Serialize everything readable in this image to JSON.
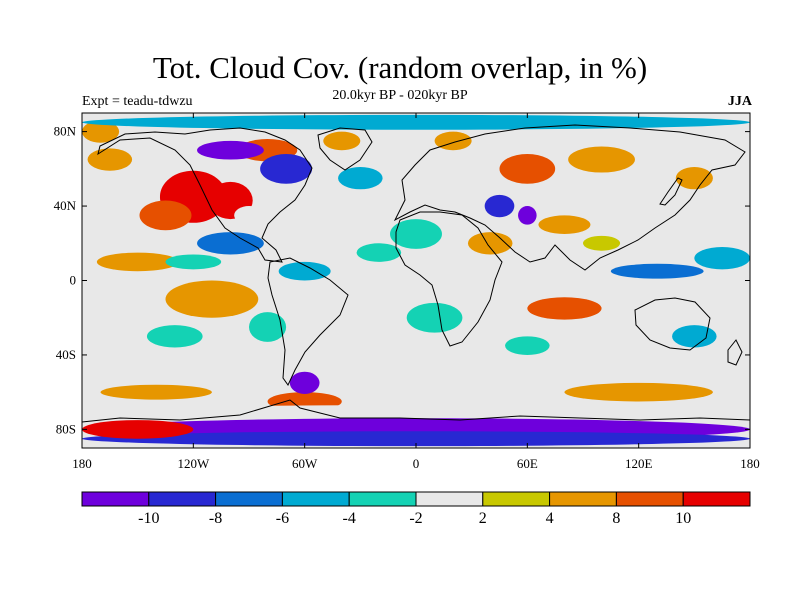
{
  "header": {
    "title": "Tot. Cloud Cov. (random overlap, in %)",
    "subtitle": "20.0kyr BP - 020kyr BP",
    "experiment": "Expt = teadu-tdwzu",
    "season": "JJA"
  },
  "map": {
    "projection": "cylindrical-equidistant",
    "lon_range": [
      -180,
      180
    ],
    "lat_range": [
      -90,
      90
    ],
    "lat_ticks": [
      {
        "value": 80,
        "label": "80N"
      },
      {
        "value": 40,
        "label": "40N"
      },
      {
        "value": 0,
        "label": "0"
      },
      {
        "value": -40,
        "label": "40S"
      },
      {
        "value": -80,
        "label": "80S"
      }
    ],
    "lon_ticks": [
      {
        "value": -180,
        "label": "180"
      },
      {
        "value": -120,
        "label": "120W"
      },
      {
        "value": -60,
        "label": "60W"
      },
      {
        "value": 0,
        "label": "0"
      },
      {
        "value": 60,
        "label": "60E"
      },
      {
        "value": 120,
        "label": "120E"
      },
      {
        "value": 180,
        "label": "180"
      }
    ],
    "background_color": "#e8e8e8",
    "anomalies": [
      {
        "lon": -120,
        "lat": 45,
        "rx": 18,
        "ry": 14,
        "level": 11
      },
      {
        "lon": -100,
        "lat": 43,
        "rx": 12,
        "ry": 10,
        "level": 11
      },
      {
        "lon": -135,
        "lat": 35,
        "rx": 14,
        "ry": 8,
        "level": 10
      },
      {
        "lon": -150,
        "lat": 10,
        "rx": 22,
        "ry": 5,
        "level": 9
      },
      {
        "lon": -165,
        "lat": 65,
        "rx": 12,
        "ry": 6,
        "level": 9
      },
      {
        "lon": -80,
        "lat": 70,
        "rx": 16,
        "ry": 6,
        "level": 10
      },
      {
        "lon": -40,
        "lat": 75,
        "rx": 10,
        "ry": 5,
        "level": 9
      },
      {
        "lon": -170,
        "lat": 80,
        "rx": 10,
        "ry": 6,
        "level": 9
      },
      {
        "lon": 20,
        "lat": 75,
        "rx": 10,
        "ry": 5,
        "level": 9
      },
      {
        "lon": 60,
        "lat": 60,
        "rx": 15,
        "ry": 8,
        "level": 10
      },
      {
        "lon": 100,
        "lat": 65,
        "rx": 18,
        "ry": 7,
        "level": 9
      },
      {
        "lon": 150,
        "lat": 55,
        "rx": 10,
        "ry": 6,
        "level": 8
      },
      {
        "lon": 40,
        "lat": 20,
        "rx": 12,
        "ry": 6,
        "level": 9
      },
      {
        "lon": 80,
        "lat": 30,
        "rx": 14,
        "ry": 5,
        "level": 9
      },
      {
        "lon": 80,
        "lat": -15,
        "rx": 20,
        "ry": 6,
        "level": 10
      },
      {
        "lon": -60,
        "lat": -65,
        "rx": 20,
        "ry": 5,
        "level": 10
      },
      {
        "lon": -110,
        "lat": -10,
        "rx": 25,
        "ry": 10,
        "level": 8
      },
      {
        "lon": -140,
        "lat": -60,
        "rx": 30,
        "ry": 4,
        "level": 8
      },
      {
        "lon": 120,
        "lat": -60,
        "rx": 40,
        "ry": 5,
        "level": 8
      },
      {
        "lon": -100,
        "lat": 20,
        "rx": 18,
        "ry": 6,
        "level": 2
      },
      {
        "lon": -60,
        "lat": 5,
        "rx": 14,
        "ry": 5,
        "level": 3
      },
      {
        "lon": -20,
        "lat": 15,
        "rx": 12,
        "ry": 5,
        "level": 4
      },
      {
        "lon": 0,
        "lat": 25,
        "rx": 14,
        "ry": 8,
        "level": 4
      },
      {
        "lon": -70,
        "lat": 60,
        "rx": 14,
        "ry": 8,
        "level": 1
      },
      {
        "lon": -100,
        "lat": 70,
        "rx": 18,
        "ry": 5,
        "level": 0
      },
      {
        "lon": -30,
        "lat": 55,
        "rx": 12,
        "ry": 6,
        "level": 3
      },
      {
        "lon": 45,
        "lat": 40,
        "rx": 8,
        "ry": 6,
        "level": 1
      },
      {
        "lon": 60,
        "lat": 35,
        "rx": 5,
        "ry": 5,
        "level": 0
      },
      {
        "lon": 130,
        "lat": 5,
        "rx": 25,
        "ry": 4,
        "level": 2
      },
      {
        "lon": 165,
        "lat": 12,
        "rx": 15,
        "ry": 6,
        "level": 3
      },
      {
        "lon": -120,
        "lat": 10,
        "rx": 15,
        "ry": 4,
        "level": 4
      },
      {
        "lon": -80,
        "lat": -25,
        "rx": 10,
        "ry": 8,
        "level": 4
      },
      {
        "lon": 10,
        "lat": -20,
        "rx": 15,
        "ry": 8,
        "level": 4
      },
      {
        "lon": -130,
        "lat": -30,
        "rx": 15,
        "ry": 6,
        "level": 4
      },
      {
        "lon": 60,
        "lat": -35,
        "rx": 12,
        "ry": 5,
        "level": 4
      },
      {
        "lon": 150,
        "lat": -30,
        "rx": 12,
        "ry": 6,
        "level": 3
      },
      {
        "lon": 0,
        "lat": 85,
        "rx": 180,
        "ry": 4,
        "level": 3
      },
      {
        "lon": 0,
        "lat": -80,
        "rx": 180,
        "ry": 6,
        "level": 0
      },
      {
        "lon": 0,
        "lat": -85,
        "rx": 180,
        "ry": 4,
        "level": 1
      },
      {
        "lon": -150,
        "lat": -80,
        "rx": 30,
        "ry": 5,
        "level": 11
      },
      {
        "lon": -60,
        "lat": -55,
        "rx": 8,
        "ry": 6,
        "level": 0
      },
      {
        "lon": 0,
        "lat": -70,
        "rx": 180,
        "ry": 3,
        "level": 6
      },
      {
        "lon": -160,
        "lat": -45,
        "rx": 15,
        "ry": 5,
        "level": 6
      },
      {
        "lon": 100,
        "lat": -45,
        "rx": 20,
        "ry": 5,
        "level": 6
      },
      {
        "lon": 170,
        "lat": -50,
        "rx": 12,
        "ry": 4,
        "level": 6
      },
      {
        "lon": -90,
        "lat": 35,
        "rx": 8,
        "ry": 5,
        "level": 6
      },
      {
        "lon": -150,
        "lat": 45,
        "rx": 12,
        "ry": 4,
        "level": 6
      },
      {
        "lon": 150,
        "lat": 40,
        "rx": 15,
        "ry": 4,
        "level": 6
      },
      {
        "lon": 100,
        "lat": 20,
        "rx": 10,
        "ry": 4,
        "level": 7
      }
    ]
  },
  "colorbar": {
    "colors": [
      "#6e00dc",
      "#2828d2",
      "#0a6ed2",
      "#00aad2",
      "#14d2b4",
      "#e8e8e8",
      "#c8c800",
      "#e69600",
      "#e65000",
      "#e60000"
    ],
    "labels": [
      "-10",
      "-8",
      "-6",
      "-4",
      "-2",
      "2",
      "4",
      "8",
      "10"
    ]
  },
  "level_colors": [
    "#6e00dc",
    "#2828d2",
    "#0a6ed2",
    "#00aad2",
    "#14d2b4",
    "#e8e8e8",
    "#e8e8e8",
    "#c8c800",
    "#e69600",
    "#e69600",
    "#e65000",
    "#e60000"
  ]
}
